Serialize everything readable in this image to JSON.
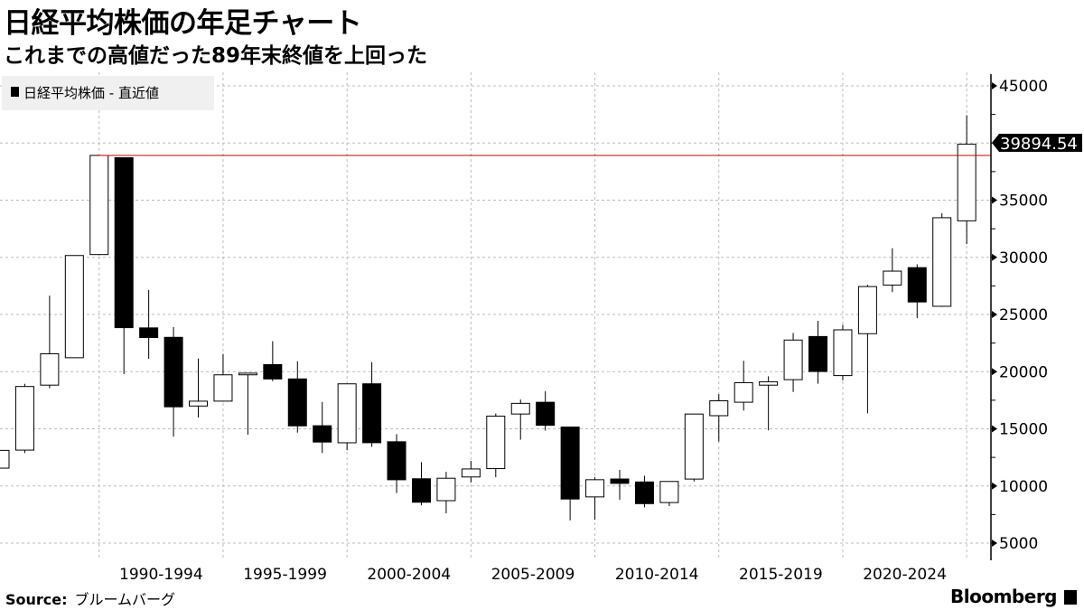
{
  "header": {
    "title": "日経平均株価の年足チャート",
    "subtitle": "これまでの高値だった89年末終値を上回った"
  },
  "footer": {
    "source_label": "Source:",
    "source_value": "ブルームバーグ",
    "brand": "Bloomberg"
  },
  "chart_data": {
    "type": "candlestick",
    "title": "",
    "legend": {
      "label": "日経平均株価  - 直近値",
      "placement": "top-left"
    },
    "xlabel": "",
    "ylabel": "",
    "ylim": [
      3500,
      46500
    ],
    "y_ticks": [
      5000,
      10000,
      15000,
      20000,
      25000,
      30000,
      35000,
      40000,
      45000
    ],
    "y_tick_labels": [
      "5000",
      "10000",
      "15000",
      "20000",
      "25000",
      "30000",
      "35000",
      "",
      "45000"
    ],
    "x_tick_labels": [
      "1990-1994",
      "1995-1999",
      "2000-2004",
      "2005-2009",
      "2010-2014",
      "2015-2019",
      "2020-2024"
    ],
    "grid": true,
    "last_value_label": "39894.54",
    "reference_line": {
      "value": 38915,
      "color": "#cc0000"
    },
    "up_color": "#ffffff",
    "down_color": "#000000",
    "candles": [
      {
        "year": 1985,
        "open": 11558,
        "high": 13128,
        "low": 11545,
        "close": 13113
      },
      {
        "year": 1986,
        "open": 13136,
        "high": 18936,
        "low": 12881,
        "close": 18701
      },
      {
        "year": 1987,
        "open": 18820,
        "high": 26646,
        "low": 18544,
        "close": 21564
      },
      {
        "year": 1988,
        "open": 21217,
        "high": 30159,
        "low": 21217,
        "close": 30159
      },
      {
        "year": 1989,
        "open": 30243,
        "high": 38957,
        "low": 30183,
        "close": 38915
      },
      {
        "year": 1990,
        "open": 38712,
        "high": 38712,
        "low": 19781,
        "close": 23848
      },
      {
        "year": 1991,
        "open": 23827,
        "high": 27146,
        "low": 21123,
        "close": 22983
      },
      {
        "year": 1992,
        "open": 23001,
        "high": 23901,
        "low": 14309,
        "close": 16924
      },
      {
        "year": 1993,
        "open": 16994,
        "high": 21148,
        "low": 15997,
        "close": 17417
      },
      {
        "year": 1994,
        "open": 17421,
        "high": 21552,
        "low": 17369,
        "close": 19723
      },
      {
        "year": 1995,
        "open": 19724,
        "high": 19868,
        "low": 14485,
        "close": 19868
      },
      {
        "year": 1996,
        "open": 20618,
        "high": 22666,
        "low": 19161,
        "close": 19361
      },
      {
        "year": 1997,
        "open": 19364,
        "high": 20910,
        "low": 14664,
        "close": 15258
      },
      {
        "year": 1998,
        "open": 15268,
        "high": 17352,
        "low": 12879,
        "close": 13842
      },
      {
        "year": 1999,
        "open": 13779,
        "high": 18934,
        "low": 13122,
        "close": 18934
      },
      {
        "year": 2000,
        "open": 18937,
        "high": 20833,
        "low": 13423,
        "close": 13785
      },
      {
        "year": 2001,
        "open": 13867,
        "high": 14529,
        "low": 9382,
        "close": 10542
      },
      {
        "year": 2002,
        "open": 10631,
        "high": 12081,
        "low": 8303,
        "close": 8578
      },
      {
        "year": 2003,
        "open": 8713,
        "high": 11238,
        "low": 7603,
        "close": 10676
      },
      {
        "year": 2004,
        "open": 10787,
        "high": 12195,
        "low": 10299,
        "close": 11488
      },
      {
        "year": 2005,
        "open": 11517,
        "high": 16344,
        "low": 10770,
        "close": 16111
      },
      {
        "year": 2006,
        "open": 16294,
        "high": 17563,
        "low": 14045,
        "close": 17225
      },
      {
        "year": 2007,
        "open": 17322,
        "high": 18300,
        "low": 14837,
        "close": 15307
      },
      {
        "year": 2008,
        "open": 15155,
        "high": 15156,
        "low": 6994,
        "close": 8859
      },
      {
        "year": 2009,
        "open": 9043,
        "high": 10767,
        "low": 7054,
        "close": 10546
      },
      {
        "year": 2010,
        "open": 10609,
        "high": 11408,
        "low": 8796,
        "close": 10228
      },
      {
        "year": 2011,
        "open": 10352,
        "high": 10891,
        "low": 8135,
        "close": 8455
      },
      {
        "year": 2012,
        "open": 8549,
        "high": 10395,
        "low": 8238,
        "close": 10395
      },
      {
        "year": 2013,
        "open": 10604,
        "high": 16320,
        "low": 10398,
        "close": 16291
      },
      {
        "year": 2014,
        "open": 16147,
        "high": 18030,
        "low": 13885,
        "close": 17451
      },
      {
        "year": 2015,
        "open": 17325,
        "high": 20953,
        "low": 16592,
        "close": 19034
      },
      {
        "year": 2016,
        "open": 18818,
        "high": 19592,
        "low": 14864,
        "close": 19114
      },
      {
        "year": 2017,
        "open": 19298,
        "high": 23382,
        "low": 18225,
        "close": 22765
      },
      {
        "year": 2018,
        "open": 23073,
        "high": 24448,
        "low": 18949,
        "close": 20015
      },
      {
        "year": 2019,
        "open": 19656,
        "high": 24091,
        "low": 19241,
        "close": 23657
      },
      {
        "year": 2020,
        "open": 23320,
        "high": 27602,
        "low": 16358,
        "close": 27444
      },
      {
        "year": 2021,
        "open": 27575,
        "high": 30795,
        "low": 26954,
        "close": 28792
      },
      {
        "year": 2022,
        "open": 29098,
        "high": 29388,
        "low": 24681,
        "close": 26095
      },
      {
        "year": 2023,
        "open": 25717,
        "high": 33853,
        "low": 25662,
        "close": 33464
      },
      {
        "year": 2024,
        "open": 33193,
        "high": 42426,
        "low": 31156,
        "close": 39894.54
      }
    ]
  }
}
